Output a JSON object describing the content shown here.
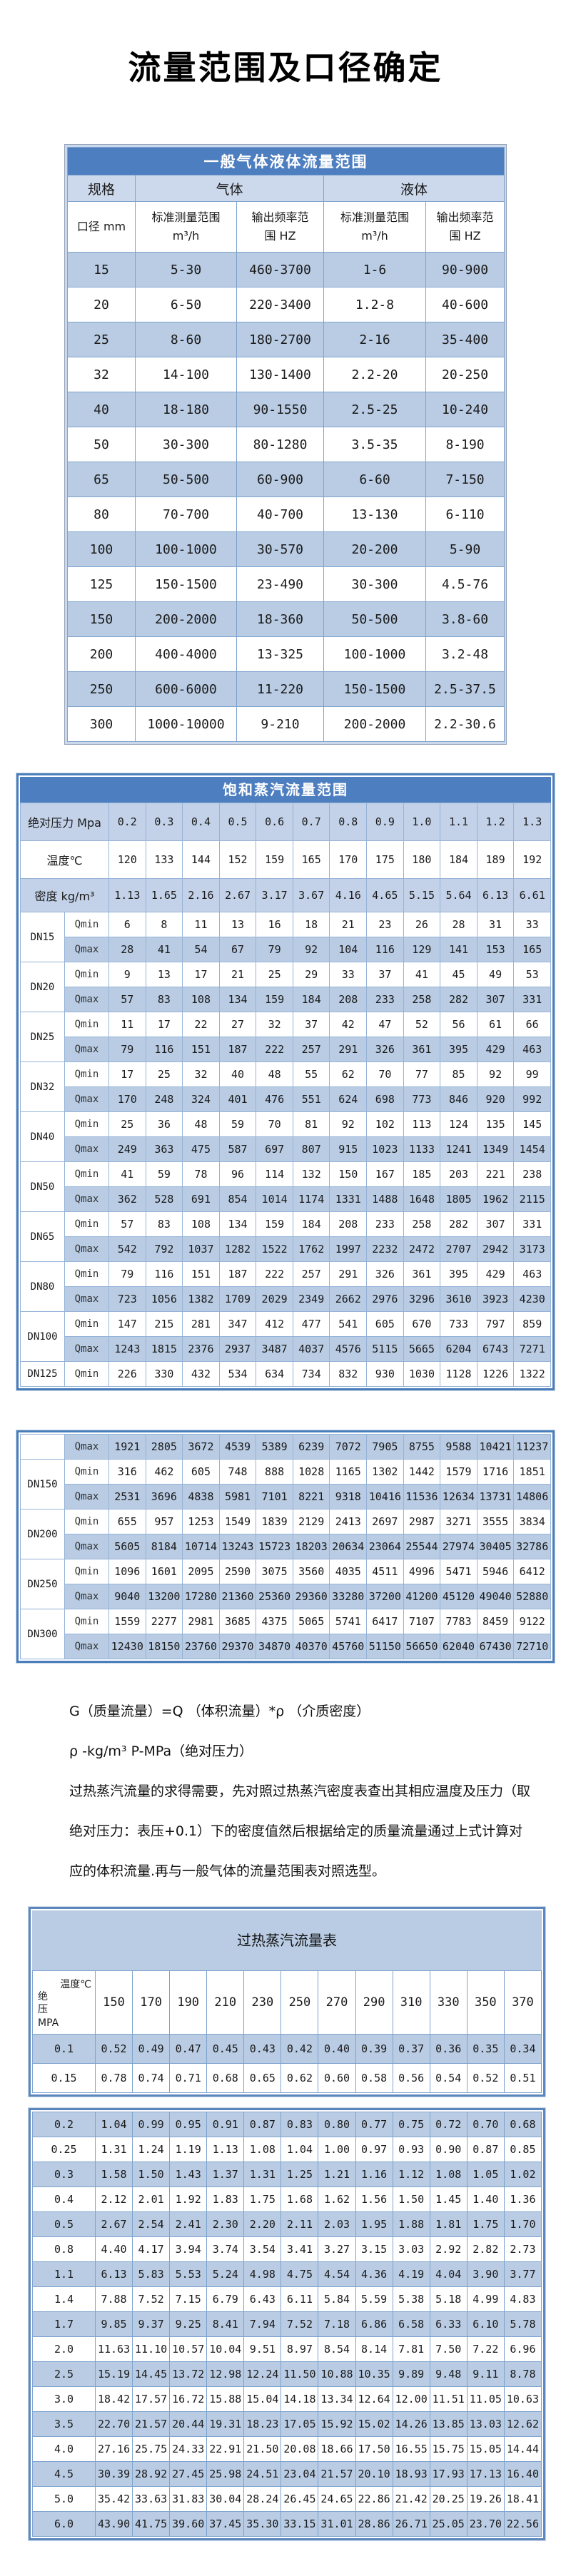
{
  "page": {
    "title": "流量范围及口径确定"
  },
  "colors": {
    "header_blue": "#4d7ebf",
    "row_blue": "#b9cce4",
    "header_light_blue": "#ccd9ec",
    "cell_border_blue": "#7ea3cd",
    "frame_blue": "#4a7ebb",
    "title_text_on_blue": "#ffffff"
  },
  "table1": {
    "title": "一般气体液体流量范围",
    "group_headers": {
      "spec": "规格",
      "gas": "气体",
      "liquid": "液体"
    },
    "sub_headers": {
      "diameter": "口径 mm",
      "gas_range_label": "标准测量范围",
      "gas_range_unit": "m³/h",
      "gas_freq_label": "输出频率范",
      "gas_freq_unit": "围 HZ",
      "liquid_range_label": "标准测量范围",
      "liquid_range_unit": "m³/h",
      "liquid_freq_label": "输出频率范",
      "liquid_freq_unit": "围 HZ"
    },
    "rows": [
      [
        "15",
        "5-30",
        "460-3700",
        "1-6",
        "90-900"
      ],
      [
        "20",
        "6-50",
        "220-3400",
        "1.2-8",
        "40-600"
      ],
      [
        "25",
        "8-60",
        "180-2700",
        "2-16",
        "35-400"
      ],
      [
        "32",
        "14-100",
        "130-1400",
        "2.2-20",
        "20-250"
      ],
      [
        "40",
        "18-180",
        "90-1550",
        "2.5-25",
        "10-240"
      ],
      [
        "50",
        "30-300",
        "80-1280",
        "3.5-35",
        "8-190"
      ],
      [
        "65",
        "50-500",
        "60-900",
        "6-60",
        "7-150"
      ],
      [
        "80",
        "70-700",
        "40-700",
        "13-130",
        "6-110"
      ],
      [
        "100",
        "100-1000",
        "30-570",
        "20-200",
        "5-90"
      ],
      [
        "125",
        "150-1500",
        "23-490",
        "30-300",
        "4.5-76"
      ],
      [
        "150",
        "200-2000",
        "18-360",
        "50-500",
        "3.8-60"
      ],
      [
        "200",
        "400-4000",
        "13-325",
        "100-1000",
        "3.2-48"
      ],
      [
        "250",
        "600-6000",
        "11-220",
        "150-1500",
        "2.5-37.5"
      ],
      [
        "300",
        "1000-10000",
        "9-210",
        "200-2000",
        "2.2-30.6"
      ]
    ]
  },
  "table2": {
    "title": "饱和蒸汽流量范围",
    "pressure_label": "绝对压力 Mpa",
    "pressures": [
      "0.2",
      "0.3",
      "0.4",
      "0.5",
      "0.6",
      "0.7",
      "0.8",
      "0.9",
      "1.0",
      "1.1",
      "1.2",
      "1.3"
    ],
    "temperature_label": "温度℃",
    "temperatures": [
      "120",
      "133",
      "144",
      "152",
      "159",
      "165",
      "170",
      "175",
      "180",
      "184",
      "189",
      "192"
    ],
    "density_label": "密度 kg/m³",
    "densities": [
      "1.13",
      "1.65",
      "2.16",
      "2.67",
      "3.17",
      "3.67",
      "4.16",
      "4.65",
      "5.15",
      "5.64",
      "6.13",
      "6.61"
    ],
    "block1": [
      {
        "dn": "DN15",
        "rows": [
          {
            "label": "Qmin",
            "values": [
              "6",
              "8",
              "11",
              "13",
              "16",
              "18",
              "21",
              "23",
              "26",
              "28",
              "31",
              "33"
            ]
          },
          {
            "label": "Qmax",
            "values": [
              "28",
              "41",
              "54",
              "67",
              "79",
              "92",
              "104",
              "116",
              "129",
              "141",
              "153",
              "165"
            ]
          }
        ]
      },
      {
        "dn": "DN20",
        "rows": [
          {
            "label": "Qmin",
            "values": [
              "9",
              "13",
              "17",
              "21",
              "25",
              "29",
              "33",
              "37",
              "41",
              "45",
              "49",
              "53"
            ]
          },
          {
            "label": "Qmax",
            "values": [
              "57",
              "83",
              "108",
              "134",
              "159",
              "184",
              "208",
              "233",
              "258",
              "282",
              "307",
              "331"
            ]
          }
        ]
      },
      {
        "dn": "DN25",
        "rows": [
          {
            "label": "Qmin",
            "values": [
              "11",
              "17",
              "22",
              "27",
              "32",
              "37",
              "42",
              "47",
              "52",
              "56",
              "61",
              "66"
            ]
          },
          {
            "label": "Qmax",
            "values": [
              "79",
              "116",
              "151",
              "187",
              "222",
              "257",
              "291",
              "326",
              "361",
              "395",
              "429",
              "463"
            ]
          }
        ]
      },
      {
        "dn": "DN32",
        "rows": [
          {
            "label": "Qmin",
            "values": [
              "17",
              "25",
              "32",
              "40",
              "48",
              "55",
              "62",
              "70",
              "77",
              "85",
              "92",
              "99"
            ]
          },
          {
            "label": "Qmax",
            "values": [
              "170",
              "248",
              "324",
              "401",
              "476",
              "551",
              "624",
              "698",
              "773",
              "846",
              "920",
              "992"
            ]
          }
        ]
      },
      {
        "dn": "DN40",
        "rows": [
          {
            "label": "Qmin",
            "values": [
              "25",
              "36",
              "48",
              "59",
              "70",
              "81",
              "92",
              "102",
              "113",
              "124",
              "135",
              "145"
            ]
          },
          {
            "label": "Qmax",
            "values": [
              "249",
              "363",
              "475",
              "587",
              "697",
              "807",
              "915",
              "1023",
              "1133",
              "1241",
              "1349",
              "1454"
            ]
          }
        ]
      },
      {
        "dn": "DN50",
        "rows": [
          {
            "label": "Qmin",
            "values": [
              "41",
              "59",
              "78",
              "96",
              "114",
              "132",
              "150",
              "167",
              "185",
              "203",
              "221",
              "238"
            ]
          },
          {
            "label": "Qmax",
            "values": [
              "362",
              "528",
              "691",
              "854",
              "1014",
              "1174",
              "1331",
              "1488",
              "1648",
              "1805",
              "1962",
              "2115"
            ]
          }
        ]
      },
      {
        "dn": "DN65",
        "rows": [
          {
            "label": "Qmin",
            "values": [
              "57",
              "83",
              "108",
              "134",
              "159",
              "184",
              "208",
              "233",
              "258",
              "282",
              "307",
              "331"
            ]
          },
          {
            "label": "Qmax",
            "values": [
              "542",
              "792",
              "1037",
              "1282",
              "1522",
              "1762",
              "1997",
              "2232",
              "2472",
              "2707",
              "2942",
              "3173"
            ]
          }
        ]
      },
      {
        "dn": "DN80",
        "rows": [
          {
            "label": "Qmin",
            "values": [
              "79",
              "116",
              "151",
              "187",
              "222",
              "257",
              "291",
              "326",
              "361",
              "395",
              "429",
              "463"
            ]
          },
          {
            "label": "Qmax",
            "values": [
              "723",
              "1056",
              "1382",
              "1709",
              "2029",
              "2349",
              "2662",
              "2976",
              "3296",
              "3610",
              "3923",
              "4230"
            ]
          }
        ]
      },
      {
        "dn": "DN100",
        "rows": [
          {
            "label": "Qmin",
            "values": [
              "147",
              "215",
              "281",
              "347",
              "412",
              "477",
              "541",
              "605",
              "670",
              "733",
              "797",
              "859"
            ]
          },
          {
            "label": "Qmax",
            "values": [
              "1243",
              "1815",
              "2376",
              "2937",
              "3487",
              "4037",
              "4576",
              "5115",
              "5665",
              "6204",
              "6743",
              "7271"
            ]
          }
        ]
      },
      {
        "dn": "DN125",
        "rows": [
          {
            "label": "Qmin",
            "values": [
              "226",
              "330",
              "432",
              "534",
              "634",
              "734",
              "832",
              "930",
              "1030",
              "1128",
              "1226",
              "1322"
            ]
          }
        ]
      }
    ],
    "block2": [
      {
        "dn": "",
        "rows": [
          {
            "label": "Qmax",
            "values": [
              "1921",
              "2805",
              "3672",
              "4539",
              "5389",
              "6239",
              "7072",
              "7905",
              "8755",
              "9588",
              "10421",
              "11237"
            ]
          }
        ]
      },
      {
        "dn": "DN150",
        "rows": [
          {
            "label": "Qmin",
            "values": [
              "316",
              "462",
              "605",
              "748",
              "888",
              "1028",
              "1165",
              "1302",
              "1442",
              "1579",
              "1716",
              "1851"
            ]
          },
          {
            "label": "Qmax",
            "values": [
              "2531",
              "3696",
              "4838",
              "5981",
              "7101",
              "8221",
              "9318",
              "10416",
              "11536",
              "12634",
              "13731",
              "14806"
            ]
          }
        ]
      },
      {
        "dn": "DN200",
        "rows": [
          {
            "label": "Qmin",
            "values": [
              "655",
              "957",
              "1253",
              "1549",
              "1839",
              "2129",
              "2413",
              "2697",
              "2987",
              "3271",
              "3555",
              "3834"
            ]
          },
          {
            "label": "Qmax",
            "values": [
              "5605",
              "8184",
              "10714",
              "13243",
              "15723",
              "18203",
              "20634",
              "23064",
              "25544",
              "27974",
              "30405",
              "32786"
            ]
          }
        ]
      },
      {
        "dn": "DN250",
        "rows": [
          {
            "label": "Qmin",
            "values": [
              "1096",
              "1601",
              "2095",
              "2590",
              "3075",
              "3560",
              "4035",
              "4511",
              "4996",
              "5471",
              "5946",
              "6412"
            ]
          },
          {
            "label": "Qmax",
            "values": [
              "9040",
              "13200",
              "17280",
              "21360",
              "25360",
              "29360",
              "33280",
              "37200",
              "41200",
              "45120",
              "49040",
              "52880"
            ]
          }
        ]
      },
      {
        "dn": "DN300",
        "rows": [
          {
            "label": "Qmin",
            "values": [
              "1559",
              "2277",
              "2981",
              "3685",
              "4375",
              "5065",
              "5741",
              "6417",
              "7107",
              "7783",
              "8459",
              "9122"
            ]
          },
          {
            "label": "Qmax",
            "values": [
              "12430",
              "18150",
              "23760",
              "29370",
              "34870",
              "40370",
              "45760",
              "51150",
              "56650",
              "62040",
              "67430",
              "72710"
            ]
          }
        ]
      }
    ]
  },
  "notes": [
    "G（质量流量）=Q （体积流量）*ρ （介质密度）",
    "ρ -kg/m³ P-MPa（绝对压力）",
    "过热蒸汽流量的求得需要，先对照过热蒸汽密度表查出其相应温度及压力（取绝对压力：表压+0.1）下的密度值然后根据给定的质量流量通过上式计算对应的体积流量.再与一般气体的流量范围表对照选型。"
  ],
  "table3": {
    "title": "过热蒸汽流量表",
    "corner": {
      "temperature_label": "温度℃",
      "pressure_label": "绝压",
      "pressure_unit": "MPA"
    },
    "temperatures": [
      "150",
      "170",
      "190",
      "210",
      "230",
      "250",
      "270",
      "290",
      "310",
      "330",
      "350",
      "370"
    ],
    "block1": [
      {
        "pressure": "0.1",
        "values": [
          "0.52",
          "0.49",
          "0.47",
          "0.45",
          "0.43",
          "0.42",
          "0.40",
          "0.39",
          "0.37",
          "0.36",
          "0.35",
          "0.34"
        ]
      },
      {
        "pressure": "0.15",
        "values": [
          "0.78",
          "0.74",
          "0.71",
          "0.68",
          "0.65",
          "0.62",
          "0.60",
          "0.58",
          "0.56",
          "0.54",
          "0.52",
          "0.51"
        ]
      }
    ],
    "block2": [
      {
        "pressure": "0.2",
        "values": [
          "1.04",
          "0.99",
          "0.95",
          "0.91",
          "0.87",
          "0.83",
          "0.80",
          "0.77",
          "0.75",
          "0.72",
          "0.70",
          "0.68"
        ]
      },
      {
        "pressure": "0.25",
        "values": [
          "1.31",
          "1.24",
          "1.19",
          "1.13",
          "1.08",
          "1.04",
          "1.00",
          "0.97",
          "0.93",
          "0.90",
          "0.87",
          "0.85"
        ]
      },
      {
        "pressure": "0.3",
        "values": [
          "1.58",
          "1.50",
          "1.43",
          "1.37",
          "1.31",
          "1.25",
          "1.21",
          "1.16",
          "1.12",
          "1.08",
          "1.05",
          "1.02"
        ]
      },
      {
        "pressure": "0.4",
        "values": [
          "2.12",
          "2.01",
          "1.92",
          "1.83",
          "1.75",
          "1.68",
          "1.62",
          "1.56",
          "1.50",
          "1.45",
          "1.40",
          "1.36"
        ]
      },
      {
        "pressure": "0.5",
        "values": [
          "2.67",
          "2.54",
          "2.41",
          "2.30",
          "2.20",
          "2.11",
          "2.03",
          "1.95",
          "1.88",
          "1.81",
          "1.75",
          "1.70"
        ]
      },
      {
        "pressure": "0.8",
        "values": [
          "4.40",
          "4.17",
          "3.94",
          "3.74",
          "3.54",
          "3.41",
          "3.27",
          "3.15",
          "3.03",
          "2.92",
          "2.82",
          "2.73"
        ]
      },
      {
        "pressure": "1.1",
        "values": [
          "6.13",
          "5.83",
          "5.53",
          "5.24",
          "4.98",
          "4.75",
          "4.54",
          "4.36",
          "4.19",
          "4.04",
          "3.90",
          "3.77"
        ]
      },
      {
        "pressure": "1.4",
        "values": [
          "7.88",
          "7.52",
          "7.15",
          "6.79",
          "6.43",
          "6.11",
          "5.84",
          "5.59",
          "5.38",
          "5.18",
          "4.99",
          "4.83"
        ]
      },
      {
        "pressure": "1.7",
        "values": [
          "9.85",
          "9.37",
          "9.25",
          "8.41",
          "7.94",
          "7.52",
          "7.18",
          "6.86",
          "6.58",
          "6.33",
          "6.10",
          "5.78"
        ]
      },
      {
        "pressure": "2.0",
        "values": [
          "11.63",
          "11.10",
          "10.57",
          "10.04",
          "9.51",
          "8.97",
          "8.54",
          "8.14",
          "7.81",
          "7.50",
          "7.22",
          "6.96"
        ]
      },
      {
        "pressure": "2.5",
        "values": [
          "15.19",
          "14.45",
          "13.72",
          "12.98",
          "12.24",
          "11.50",
          "10.88",
          "10.35",
          "9.89",
          "9.48",
          "9.11",
          "8.78"
        ]
      },
      {
        "pressure": "3.0",
        "values": [
          "18.42",
          "17.57",
          "16.72",
          "15.88",
          "15.04",
          "14.18",
          "13.34",
          "12.64",
          "12.00",
          "11.51",
          "11.05",
          "10.63"
        ]
      },
      {
        "pressure": "3.5",
        "values": [
          "22.70",
          "21.57",
          "20.44",
          "19.31",
          "18.23",
          "17.05",
          "15.92",
          "15.02",
          "14.26",
          "13.85",
          "13.03",
          "12.62"
        ]
      },
      {
        "pressure": "4.0",
        "values": [
          "27.16",
          "25.75",
          "24.33",
          "22.91",
          "21.50",
          "20.08",
          "18.66",
          "17.50",
          "16.55",
          "15.75",
          "15.05",
          "14.44"
        ]
      },
      {
        "pressure": "4.5",
        "values": [
          "30.39",
          "28.92",
          "27.45",
          "25.98",
          "24.51",
          "23.04",
          "21.57",
          "20.10",
          "18.93",
          "17.93",
          "17.13",
          "16.40"
        ]
      },
      {
        "pressure": "5.0",
        "values": [
          "35.42",
          "33.63",
          "31.83",
          "30.04",
          "28.24",
          "26.45",
          "24.65",
          "22.86",
          "21.42",
          "20.25",
          "19.26",
          "18.41"
        ]
      },
      {
        "pressure": "6.0",
        "values": [
          "43.90",
          "41.75",
          "39.60",
          "37.45",
          "35.30",
          "33.15",
          "31.01",
          "28.86",
          "26.71",
          "25.05",
          "23.70",
          "22.56"
        ]
      }
    ]
  }
}
